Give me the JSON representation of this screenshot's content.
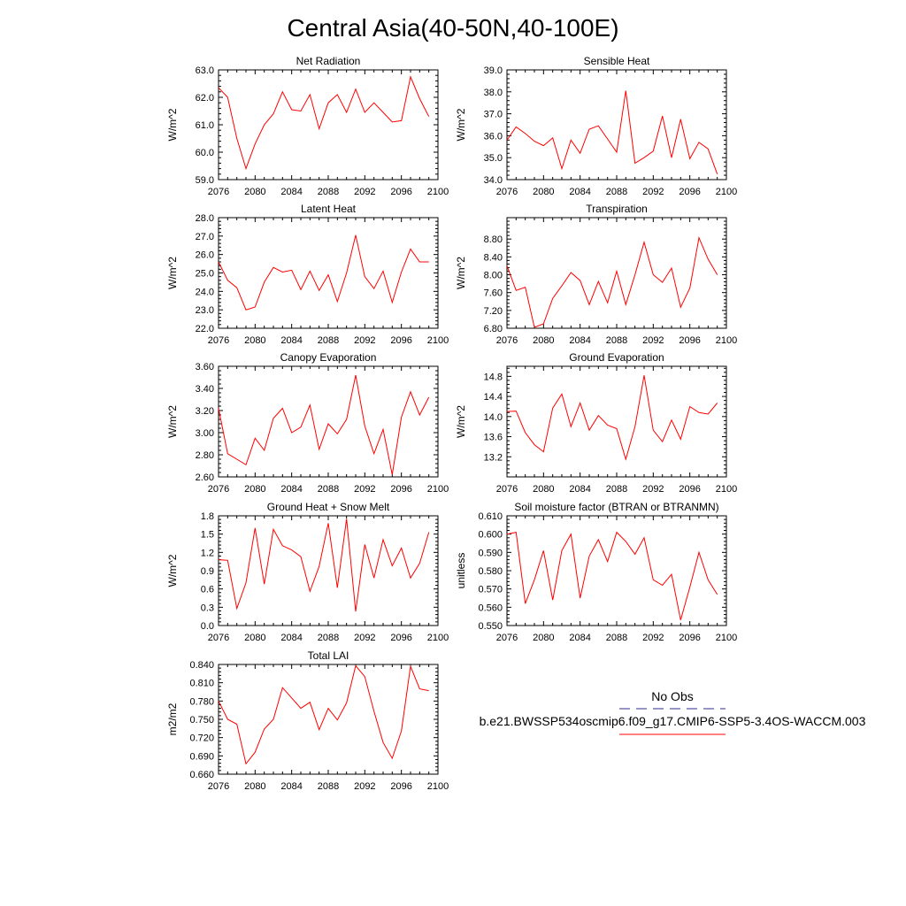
{
  "title": "Central Asia(40-50N,40-100E)",
  "colors": {
    "series": "#ff0000",
    "obs": "#2b2b8c",
    "axis": "#000000"
  },
  "legend": {
    "obs_label": "No Obs",
    "model_label": "b.e21.BWSSP534oscmip6.f09_g17.CMIP6-SSP5-3.4OS-WACCM.003"
  },
  "chart_data": [
    {
      "type": "line",
      "title": "Net Radiation",
      "ylabel": "W/m^2",
      "xlim": [
        2076,
        2100
      ],
      "ylim": [
        59.0,
        63.0
      ],
      "xticks": [
        2076,
        2080,
        2084,
        2088,
        2092,
        2096,
        2100
      ],
      "yticks": [
        "59.0",
        "60.0",
        "61.0",
        "62.0",
        "63.0"
      ],
      "x": [
        2076,
        2077,
        2078,
        2079,
        2080,
        2081,
        2082,
        2083,
        2084,
        2085,
        2086,
        2087,
        2088,
        2089,
        2090,
        2091,
        2092,
        2093,
        2094,
        2095,
        2096,
        2097,
        2098,
        2099
      ],
      "values": [
        62.35,
        62.0,
        60.5,
        59.4,
        60.3,
        61.0,
        61.4,
        62.2,
        61.55,
        61.5,
        62.1,
        60.85,
        61.8,
        62.1,
        61.45,
        62.3,
        61.45,
        61.8,
        61.45,
        61.1,
        61.15,
        62.75,
        61.95,
        61.3
      ]
    },
    {
      "type": "line",
      "title": "Sensible Heat",
      "ylabel": "W/m^2",
      "xlim": [
        2076,
        2100
      ],
      "ylim": [
        34.0,
        39.0
      ],
      "xticks": [
        2076,
        2080,
        2084,
        2088,
        2092,
        2096,
        2100
      ],
      "yticks": [
        "34.0",
        "35.0",
        "36.0",
        "37.0",
        "38.0",
        "39.0"
      ],
      "x": [
        2076,
        2077,
        2078,
        2079,
        2080,
        2081,
        2082,
        2083,
        2084,
        2085,
        2086,
        2087,
        2088,
        2089,
        2090,
        2091,
        2092,
        2093,
        2094,
        2095,
        2096,
        2097,
        2098,
        2099
      ],
      "values": [
        35.8,
        36.4,
        36.1,
        35.75,
        35.55,
        35.9,
        34.5,
        35.8,
        35.2,
        36.3,
        36.45,
        35.85,
        35.25,
        38.05,
        34.75,
        35.0,
        35.3,
        36.9,
        35.0,
        36.75,
        34.95,
        35.7,
        35.4,
        34.25
      ]
    },
    {
      "type": "line",
      "title": "Latent Heat",
      "ylabel": "W/m^2",
      "xlim": [
        2076,
        2100
      ],
      "ylim": [
        22.0,
        28.0
      ],
      "xticks": [
        2076,
        2080,
        2084,
        2088,
        2092,
        2096,
        2100
      ],
      "yticks": [
        "22.0",
        "23.0",
        "24.0",
        "25.0",
        "26.0",
        "27.0",
        "28.0"
      ],
      "x": [
        2076,
        2077,
        2078,
        2079,
        2080,
        2081,
        2082,
        2083,
        2084,
        2085,
        2086,
        2087,
        2088,
        2089,
        2090,
        2091,
        2092,
        2093,
        2094,
        2095,
        2096,
        2097,
        2098,
        2099
      ],
      "values": [
        25.6,
        24.6,
        24.2,
        23.0,
        23.15,
        24.5,
        25.3,
        25.05,
        25.15,
        24.1,
        25.1,
        24.05,
        24.9,
        23.45,
        25.0,
        27.05,
        24.8,
        24.15,
        25.1,
        23.4,
        25.05,
        26.3,
        25.6,
        25.6
      ]
    },
    {
      "type": "line",
      "title": "Transpiration",
      "ylabel": "W/m^2",
      "xlim": [
        2076,
        2100
      ],
      "ylim": [
        6.8,
        9.28
      ],
      "xticks": [
        2076,
        2080,
        2084,
        2088,
        2092,
        2096,
        2100
      ],
      "yticks": [
        "6.80",
        "7.20",
        "7.60",
        "8.00",
        "8.40",
        "8.80"
      ],
      "x": [
        2076,
        2077,
        2078,
        2079,
        2080,
        2081,
        2082,
        2083,
        2084,
        2085,
        2086,
        2087,
        2088,
        2089,
        2090,
        2091,
        2092,
        2093,
        2094,
        2095,
        2096,
        2097,
        2098,
        2099
      ],
      "values": [
        8.2,
        7.65,
        7.72,
        6.82,
        6.9,
        7.47,
        7.75,
        8.05,
        7.87,
        7.33,
        7.85,
        7.37,
        8.08,
        7.33,
        8.0,
        8.73,
        8.0,
        7.83,
        8.15,
        7.27,
        7.7,
        8.83,
        8.35,
        8.0
      ]
    },
    {
      "type": "line",
      "title": "Canopy Evaporation",
      "ylabel": "W/m^2",
      "xlim": [
        2076,
        2100
      ],
      "ylim": [
        2.6,
        3.6
      ],
      "xticks": [
        2076,
        2080,
        2084,
        2088,
        2092,
        2096,
        2100
      ],
      "yticks": [
        "2.60",
        "2.80",
        "3.00",
        "3.20",
        "3.40",
        "3.60"
      ],
      "x": [
        2076,
        2077,
        2078,
        2079,
        2080,
        2081,
        2082,
        2083,
        2084,
        2085,
        2086,
        2087,
        2088,
        2089,
        2090,
        2091,
        2092,
        2093,
        2094,
        2095,
        2096,
        2097,
        2098,
        2099
      ],
      "values": [
        3.22,
        2.81,
        2.76,
        2.71,
        2.95,
        2.84,
        3.13,
        3.22,
        3.0,
        3.05,
        3.25,
        2.85,
        3.08,
        2.99,
        3.12,
        3.52,
        3.06,
        2.81,
        3.03,
        2.62,
        3.14,
        3.37,
        3.16,
        3.32
      ]
    },
    {
      "type": "line",
      "title": "Ground Evaporation",
      "ylabel": "W/m^2",
      "xlim": [
        2076,
        2100
      ],
      "ylim": [
        12.8,
        15.0
      ],
      "xticks": [
        2076,
        2080,
        2084,
        2088,
        2092,
        2096,
        2100
      ],
      "yticks": [
        "13.2",
        "13.6",
        "14.0",
        "14.4",
        "14.8"
      ],
      "x": [
        2076,
        2077,
        2078,
        2079,
        2080,
        2081,
        2082,
        2083,
        2084,
        2085,
        2086,
        2087,
        2088,
        2089,
        2090,
        2091,
        2092,
        2093,
        2094,
        2095,
        2096,
        2097,
        2098,
        2099
      ],
      "values": [
        14.1,
        14.11,
        13.68,
        13.44,
        13.3,
        14.17,
        14.45,
        13.8,
        14.27,
        13.73,
        14.02,
        13.83,
        13.76,
        13.15,
        13.8,
        14.82,
        13.73,
        13.5,
        13.93,
        13.55,
        14.2,
        14.08,
        14.05,
        14.27
      ]
    },
    {
      "type": "line",
      "title": "Ground Heat + Snow Melt",
      "ylabel": "W/m^2",
      "xlim": [
        2076,
        2100
      ],
      "ylim": [
        0.0,
        1.8
      ],
      "xticks": [
        2076,
        2080,
        2084,
        2088,
        2092,
        2096,
        2100
      ],
      "yticks": [
        "0.0",
        "0.3",
        "0.6",
        "0.9",
        "1.2",
        "1.5",
        "1.8"
      ],
      "x": [
        2076,
        2077,
        2078,
        2079,
        2080,
        2081,
        2082,
        2083,
        2084,
        2085,
        2086,
        2087,
        2088,
        2089,
        2090,
        2091,
        2092,
        2093,
        2094,
        2095,
        2096,
        2097,
        2098,
        2099
      ],
      "values": [
        1.08,
        1.07,
        0.28,
        0.7,
        1.6,
        0.68,
        1.58,
        1.31,
        1.24,
        1.13,
        0.56,
        0.97,
        1.68,
        0.62,
        1.75,
        0.23,
        1.33,
        0.78,
        1.41,
        0.98,
        1.27,
        0.78,
        1.02,
        1.53
      ]
    },
    {
      "type": "line",
      "title": "Soil moisture factor (BTRAN or BTRANMN)",
      "ylabel": "unitless",
      "xlim": [
        2076,
        2100
      ],
      "ylim": [
        0.55,
        0.61
      ],
      "xticks": [
        2076,
        2080,
        2084,
        2088,
        2092,
        2096,
        2100
      ],
      "yticks": [
        "0.550",
        "0.560",
        "0.570",
        "0.580",
        "0.590",
        "0.600",
        "0.610"
      ],
      "x": [
        2076,
        2077,
        2078,
        2079,
        2080,
        2081,
        2082,
        2083,
        2084,
        2085,
        2086,
        2087,
        2088,
        2089,
        2090,
        2091,
        2092,
        2093,
        2094,
        2095,
        2096,
        2097,
        2098,
        2099
      ],
      "values": [
        0.6,
        0.601,
        0.562,
        0.575,
        0.591,
        0.564,
        0.591,
        0.6,
        0.565,
        0.588,
        0.597,
        0.585,
        0.601,
        0.596,
        0.589,
        0.598,
        0.575,
        0.572,
        0.578,
        0.553,
        0.571,
        0.59,
        0.575,
        0.567
      ]
    },
    {
      "type": "line",
      "title": "Total LAI",
      "ylabel": "m2/m2",
      "xlim": [
        2076,
        2100
      ],
      "ylim": [
        0.66,
        0.84
      ],
      "xticks": [
        2076,
        2080,
        2084,
        2088,
        2092,
        2096,
        2100
      ],
      "yticks": [
        "0.660",
        "0.690",
        "0.720",
        "0.750",
        "0.780",
        "0.810",
        "0.840"
      ],
      "x": [
        2076,
        2077,
        2078,
        2079,
        2080,
        2081,
        2082,
        2083,
        2084,
        2085,
        2086,
        2087,
        2088,
        2089,
        2090,
        2091,
        2092,
        2093,
        2094,
        2095,
        2096,
        2097,
        2098,
        2099
      ],
      "values": [
        0.78,
        0.75,
        0.742,
        0.677,
        0.696,
        0.734,
        0.75,
        0.802,
        0.785,
        0.768,
        0.778,
        0.733,
        0.768,
        0.749,
        0.777,
        0.838,
        0.82,
        0.763,
        0.712,
        0.686,
        0.731,
        0.837,
        0.8,
        0.797
      ]
    }
  ]
}
